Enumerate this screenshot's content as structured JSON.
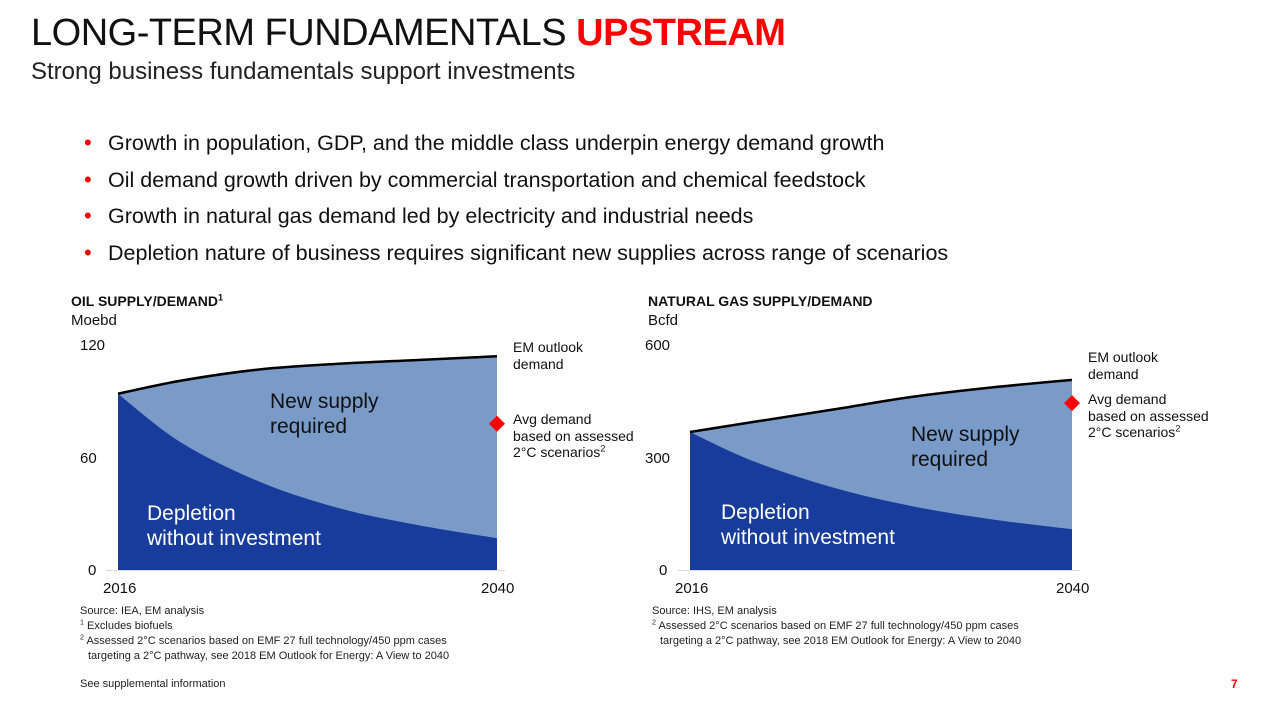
{
  "header": {
    "title_main": "LONG-TERM FUNDAMENTALS",
    "title_accent": "UPSTREAM",
    "subtitle": "Strong business fundamentals support investments"
  },
  "bullets": [
    "Growth in population, GDP, and the middle class underpin energy demand growth",
    "Oil demand growth driven by commercial transportation and chemical feedstock",
    "Growth in natural gas demand led by electricity and industrial needs",
    "Depletion nature of business requires significant new supplies across range of scenarios"
  ],
  "bullet_symbol": "•",
  "colors": {
    "accent": "#ff0000",
    "depletion": "#173c9c",
    "new_supply": "#7a9ac8",
    "demand_line": "#000000",
    "marker": "#ff0000"
  },
  "chart_data": [
    {
      "type": "area",
      "title": "OIL SUPPLY/DEMAND",
      "title_sup": "1",
      "ylabel": "Moebd",
      "x": [
        2016,
        2020,
        2025,
        2030,
        2035,
        2040
      ],
      "xticks": [
        "2016",
        "2040"
      ],
      "yticks": [
        "0",
        "60",
        "120"
      ],
      "ylim": [
        0,
        120
      ],
      "grid": false,
      "series": [
        {
          "name": "Depletion without investment",
          "values": [
            94,
            68,
            47,
            33,
            24,
            17
          ]
        },
        {
          "name": "New supply required",
          "values": [
            0,
            33,
            60,
            77,
            88,
            97
          ]
        }
      ],
      "demand_line": {
        "values": [
          94,
          101,
          107,
          110,
          112,
          114
        ]
      },
      "marker": {
        "x": 2040,
        "y": 78
      },
      "labels": {
        "depletion": [
          "Depletion",
          "without investment"
        ],
        "new_supply": [
          "New supply",
          "required"
        ],
        "demand": [
          "EM outlook",
          "demand"
        ],
        "avg": [
          "Avg demand",
          "based on assessed",
          "2°C scenarios"
        ],
        "avg_sup": "2"
      },
      "footnotes": {
        "source": "Source: IEA, EM analysis",
        "notes": [
          {
            "sup": "1",
            "text": "Excludes biofuels"
          },
          {
            "sup": "2",
            "text": "Assessed 2°C scenarios based on EMF 27 full technology/450 ppm cases",
            "cont": "targeting a 2°C pathway, see 2018 EM Outlook for Energy: A View to 2040"
          }
        ]
      }
    },
    {
      "type": "area",
      "title": "NATURAL GAS SUPPLY/DEMAND",
      "ylabel": "Bcfd",
      "x": [
        2016,
        2020,
        2025,
        2030,
        2035,
        2040
      ],
      "xticks": [
        "2016",
        "2040"
      ],
      "yticks": [
        "0",
        "300",
        "600"
      ],
      "ylim": [
        0,
        600
      ],
      "grid": false,
      "series": [
        {
          "name": "Depletion without investment",
          "values": [
            368,
            290,
            220,
            170,
            135,
            109
          ]
        },
        {
          "name": "New supply required",
          "values": [
            0,
            105,
            208,
            292,
            352,
            398
          ]
        }
      ],
      "demand_line": {
        "values": [
          368,
          395,
          428,
          462,
          487,
          507
        ]
      },
      "marker": {
        "x": 2040,
        "y": 445
      },
      "labels": {
        "depletion": [
          "Depletion",
          "without investment"
        ],
        "new_supply": [
          "New supply",
          "required"
        ],
        "demand": [
          "EM outlook",
          "demand"
        ],
        "avg": [
          "Avg demand",
          "based on assessed",
          "2°C scenarios"
        ],
        "avg_sup": "2"
      },
      "footnotes": {
        "source": "Source: IHS, EM analysis",
        "notes": [
          {
            "sup": "2",
            "text": "Assessed 2°C scenarios based on EMF 27 full technology/450 ppm cases",
            "cont": "targeting a 2°C pathway, see 2018 EM Outlook for Energy: A View to 2040"
          }
        ]
      }
    }
  ],
  "footer": {
    "supplemental": "See supplemental information",
    "page_number": "7"
  }
}
